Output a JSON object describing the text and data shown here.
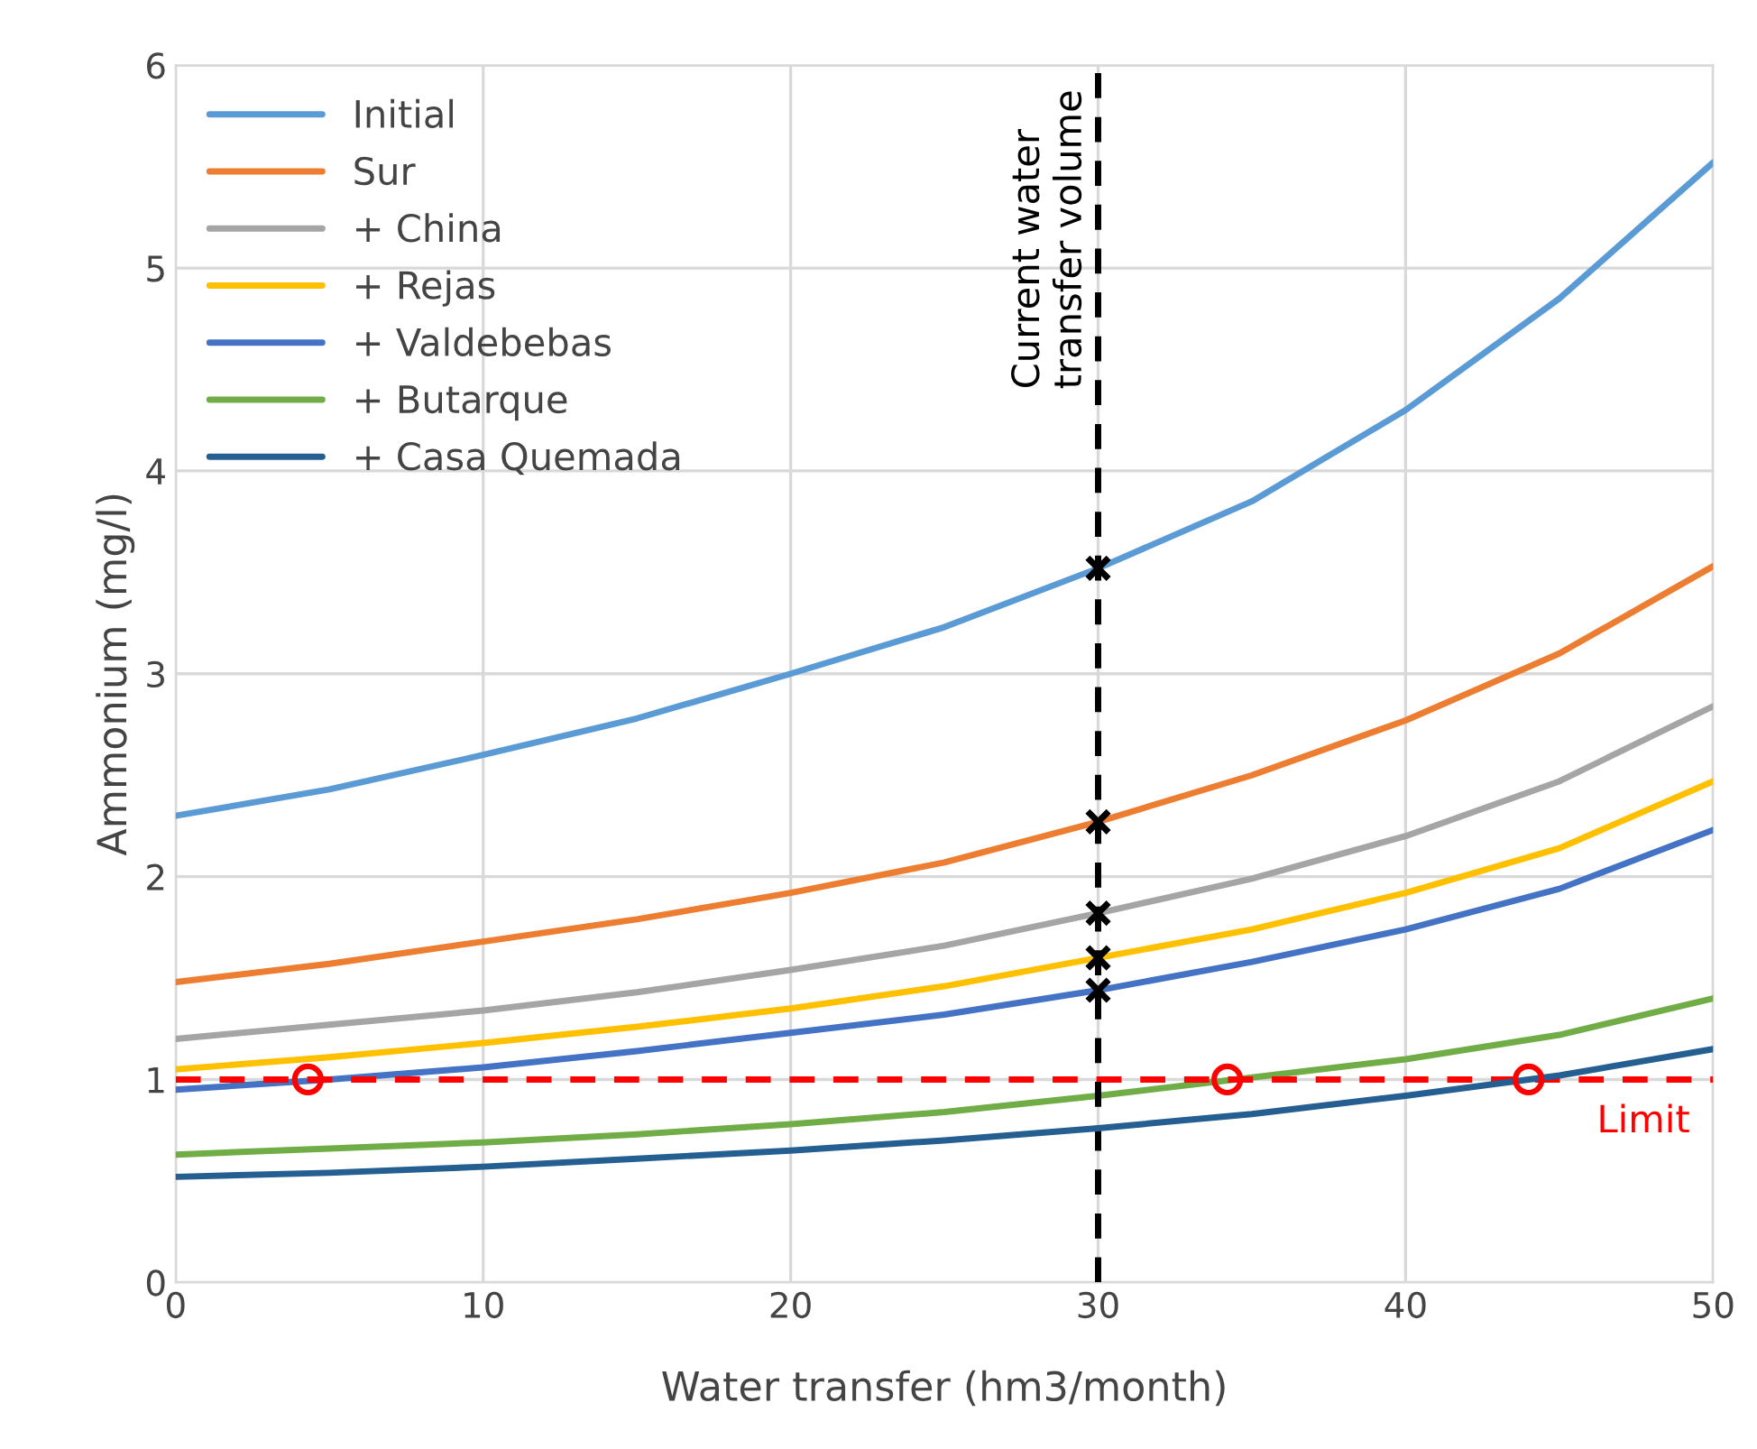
{
  "chart_data": {
    "type": "line",
    "xlabel": "Water transfer (hm3/month)",
    "ylabel": "Ammonium (mg/l)",
    "x": [
      0,
      5,
      10,
      15,
      20,
      25,
      30,
      35,
      40,
      45,
      50
    ],
    "series": [
      {
        "name": "Initial",
        "color": "#5b9bd5",
        "values": [
          2.3,
          2.43,
          2.6,
          2.78,
          3.0,
          3.23,
          3.52,
          3.85,
          4.3,
          4.85,
          5.52
        ]
      },
      {
        "name": "Sur",
        "color": "#ed7d31",
        "values": [
          1.48,
          1.57,
          1.68,
          1.79,
          1.92,
          2.07,
          2.27,
          2.5,
          2.77,
          3.1,
          3.53
        ]
      },
      {
        "name": "+ China",
        "color": "#a5a5a5",
        "values": [
          1.2,
          1.27,
          1.34,
          1.43,
          1.54,
          1.66,
          1.82,
          1.99,
          2.2,
          2.47,
          2.84
        ]
      },
      {
        "name": "+ Rejas",
        "color": "#ffc000",
        "values": [
          1.05,
          1.11,
          1.18,
          1.26,
          1.35,
          1.46,
          1.6,
          1.74,
          1.92,
          2.14,
          2.47
        ]
      },
      {
        "name": "+ Valdebebas",
        "color": "#4472c4",
        "values": [
          0.95,
          1.0,
          1.06,
          1.14,
          1.23,
          1.32,
          1.44,
          1.58,
          1.74,
          1.94,
          2.23
        ]
      },
      {
        "name": "+ Butarque",
        "color": "#70ad47",
        "values": [
          0.63,
          0.66,
          0.69,
          0.73,
          0.78,
          0.84,
          0.92,
          1.01,
          1.1,
          1.22,
          1.4
        ]
      },
      {
        "name": "+ Casa Quemada",
        "color": "#255e91",
        "values": [
          0.52,
          0.54,
          0.57,
          0.61,
          0.65,
          0.7,
          0.76,
          0.83,
          0.92,
          1.02,
          1.15
        ]
      },
      {
        "type": "scatter",
        "marker": "cross",
        "color": "#000000",
        "x": [
          30,
          30,
          30,
          30,
          30
        ],
        "values": [
          3.52,
          2.27,
          1.82,
          1.6,
          1.44
        ]
      },
      {
        "type": "scatter",
        "marker": "circle",
        "color": "#ff0000",
        "x": [
          4.3,
          34.2,
          44
        ],
        "values": [
          1.0,
          1.0,
          1.0
        ]
      }
    ],
    "xlim": [
      0,
      50
    ],
    "xticks": [
      0,
      10,
      20,
      30,
      40,
      50
    ],
    "ylim": [
      0,
      6
    ],
    "yticks": [
      0,
      1,
      2,
      3,
      4,
      5,
      6
    ],
    "ref_lines": [
      {
        "axis": "y",
        "value": 1,
        "label": "Limit",
        "color": "#ff0000",
        "line_style": "dashed"
      },
      {
        "axis": "x",
        "value": 30,
        "label": "Current water\ntransfer volume",
        "color": "#000000",
        "line_style": "dashed"
      }
    ],
    "grid": true,
    "legend": "top left"
  }
}
